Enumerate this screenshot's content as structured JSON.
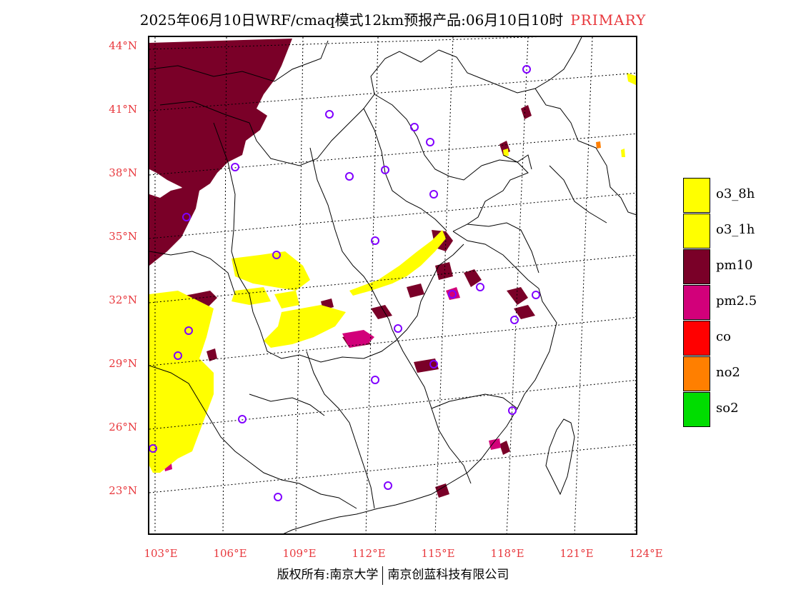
{
  "header": {
    "title": "2025年06月10日WRF/cmaq模式12km预报产品:06月10日10时",
    "tag": "PRIMARY"
  },
  "map": {
    "lat_labels": [
      "44°N",
      "41°N",
      "38°N",
      "35°N",
      "32°N",
      "29°N",
      "26°N",
      "23°N"
    ],
    "lon_labels": [
      "103°E",
      "106°E",
      "109°E",
      "112°E",
      "115°E",
      "118°E",
      "121°E",
      "124°E"
    ],
    "colors": {
      "o3_8h": "#ffff00",
      "o3_1h": "#ffff00",
      "pm10": "#7a0028",
      "pm2_5": "#d2007a",
      "co": "#ff0000",
      "no2": "#ff7f00",
      "so2": "#00dd00",
      "station_marker": "#8000ff"
    }
  },
  "legend": {
    "items": [
      {
        "label": "o3_8h",
        "color": "#ffff00"
      },
      {
        "label": "o3_1h",
        "color": "#ffff00"
      },
      {
        "label": "pm10",
        "color": "#7a0028"
      },
      {
        "label": "pm2.5",
        "color": "#d2007a"
      },
      {
        "label": "co",
        "color": "#ff0000"
      },
      {
        "label": "no2",
        "color": "#ff7f00"
      },
      {
        "label": "so2",
        "color": "#00dd00"
      }
    ]
  },
  "footer": {
    "left": "版权所有:南京大学",
    "right": "南京创蓝科技有限公司"
  }
}
